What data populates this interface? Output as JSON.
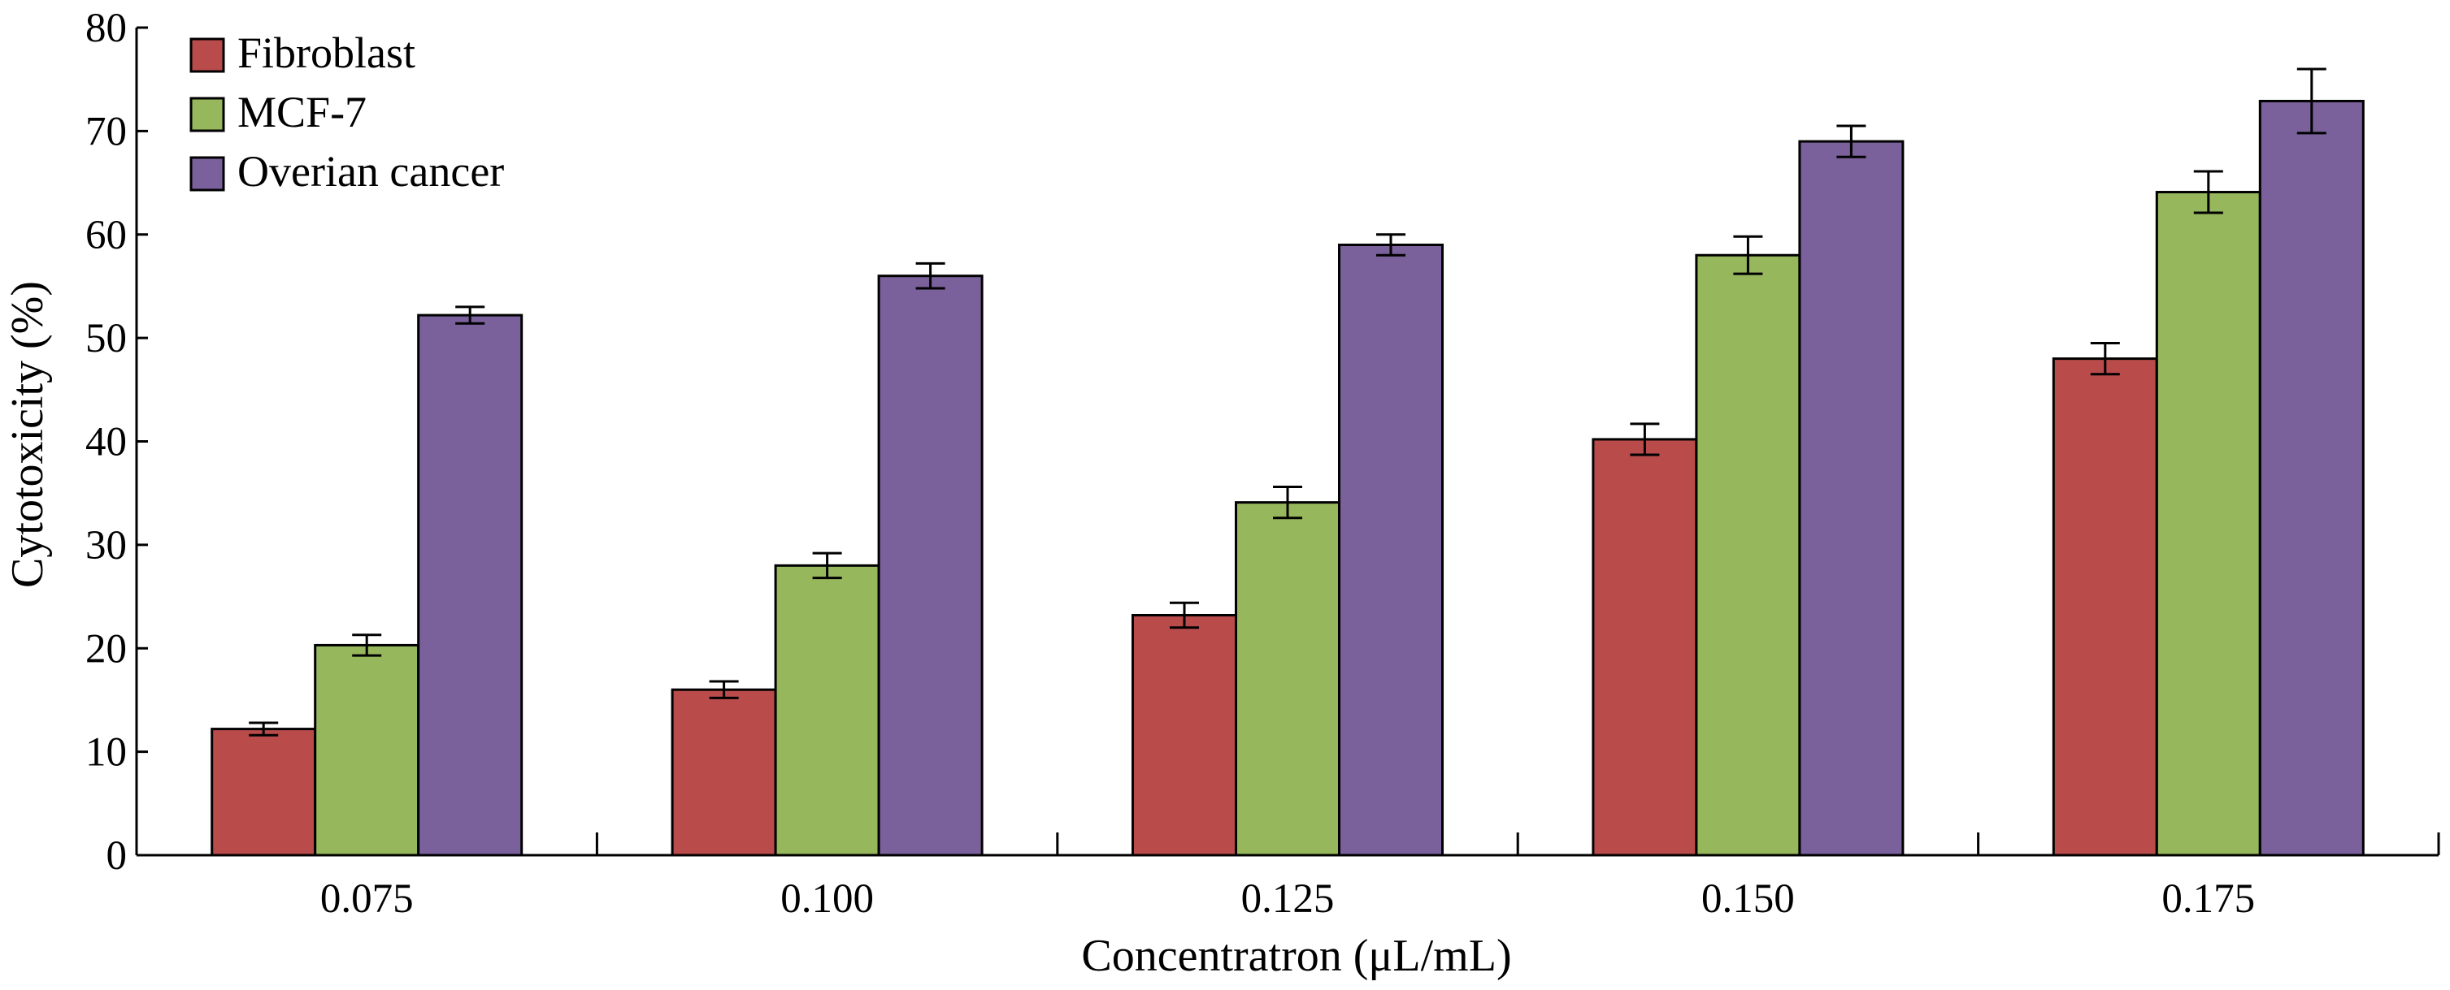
{
  "chart_data": {
    "type": "bar",
    "xlabel": "Concentratron (μL/mL)",
    "ylabel": "Cytotoxicity (%)",
    "categories": [
      "0.075",
      "0.100",
      "0.125",
      "0.150",
      "0.175"
    ],
    "ylim": [
      0,
      80
    ],
    "yticks": [
      0,
      10,
      20,
      30,
      40,
      50,
      60,
      70,
      80
    ],
    "legend_position": "top-left",
    "grid": false,
    "series": [
      {
        "name": "Fibroblast",
        "color": "#b94b4b",
        "values": [
          12.2,
          16.0,
          23.2,
          40.2,
          48.0
        ],
        "errors": [
          0.6,
          0.8,
          1.2,
          1.5,
          1.5
        ]
      },
      {
        "name": "MCF-7",
        "color": "#97b75c",
        "values": [
          20.3,
          28.0,
          34.1,
          58.0,
          64.1
        ],
        "errors": [
          1.0,
          1.2,
          1.5,
          1.8,
          2.0
        ]
      },
      {
        "name": "Overian cancer",
        "color": "#7a619b",
        "values": [
          52.2,
          56.0,
          59.0,
          69.0,
          72.9
        ],
        "errors": [
          0.8,
          1.2,
          1.0,
          1.5,
          3.1
        ]
      }
    ]
  }
}
